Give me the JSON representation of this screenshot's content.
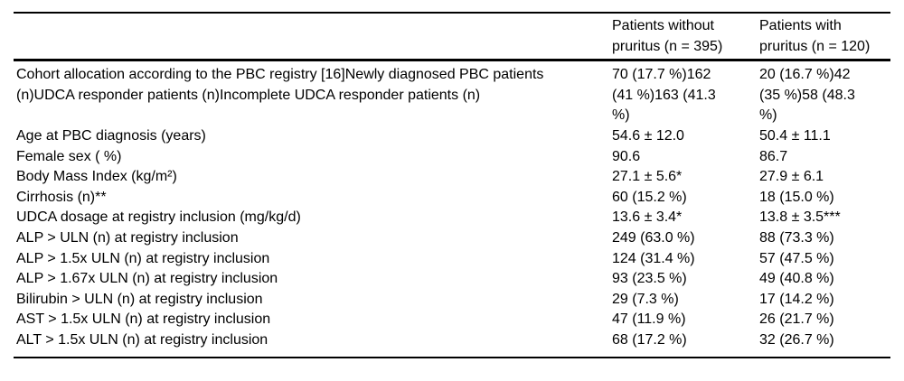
{
  "table": {
    "header": {
      "label_col": "",
      "without_col": "Patients without\npruritus (n = 395)",
      "with_col": "Patients with\npruritus (n = 120)"
    },
    "rows": [
      {
        "label": "Cohort allocation according to the PBC registry [16]Newly diagnosed PBC patients\n(n)UDCA responder patients (n)Incomplete UDCA responder patients (n)",
        "without": "70 (17.7 %)162\n(41 %)163 (41.3\n%)",
        "with": "20 (16.7 %)42\n(35 %)58 (48.3\n%)"
      },
      {
        "label": "Age at PBC diagnosis (years)",
        "without": "54.6 ± 12.0",
        "with": "50.4 ± 11.1"
      },
      {
        "label": "Female sex ( %)",
        "without": "90.6",
        "with": "86.7"
      },
      {
        "label": "Body Mass Index (kg/m²)",
        "without": "27.1 ± 5.6*",
        "with": "27.9 ± 6.1"
      },
      {
        "label": "Cirrhosis (n)**",
        "without": "60 (15.2 %)",
        "with": "18 (15.0 %)"
      },
      {
        "label": "UDCA dosage at registry inclusion (mg/kg/d)",
        "without": "13.6 ± 3.4*",
        "with": "13.8 ± 3.5***"
      },
      {
        "label": "ALP > ULN (n) at registry inclusion",
        "without": "249 (63.0 %)",
        "with": "88 (73.3 %)"
      },
      {
        "label": "ALP > 1.5x ULN (n) at registry inclusion",
        "without": "124 (31.4 %)",
        "with": "57 (47.5 %)"
      },
      {
        "label": "ALP > 1.67x ULN (n) at registry inclusion",
        "without": "93 (23.5 %)",
        "with": "49 (40.8 %)"
      },
      {
        "label": "Bilirubin > ULN (n) at registry inclusion",
        "without": "29 (7.3 %)",
        "with": "17 (14.2 %)"
      },
      {
        "label": "AST > 1.5x ULN (n) at registry inclusion",
        "without": "47 (11.9 %)",
        "with": "26 (21.7 %)"
      },
      {
        "label": "ALT > 1.5x ULN (n) at registry inclusion",
        "without": "68 (17.2 %)",
        "with": "32 (26.7 %)"
      }
    ],
    "colors": {
      "text": "#000000",
      "rule": "#000000",
      "background": "#ffffff"
    }
  }
}
